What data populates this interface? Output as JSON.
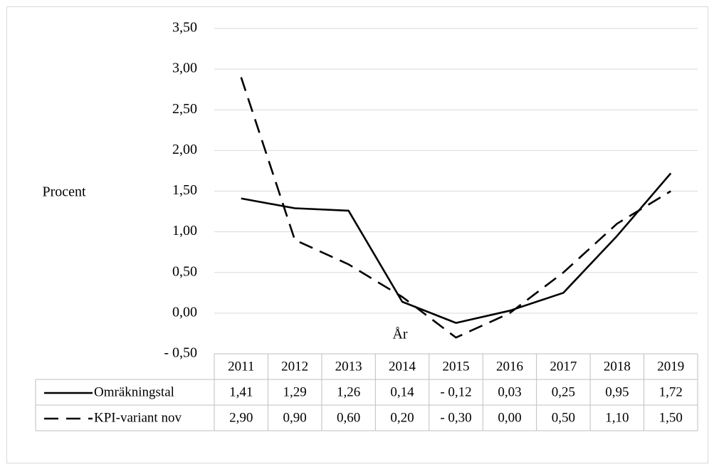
{
  "chart_data": {
    "type": "line",
    "y_label": "Procent",
    "x_label": "År",
    "categories": [
      "2011",
      "2012",
      "2013",
      "2014",
      "2015",
      "2016",
      "2017",
      "2018",
      "2019"
    ],
    "series": [
      {
        "name": "Omräkningstal",
        "color": "#000000",
        "dash": "solid",
        "values": [
          1.41,
          1.29,
          1.26,
          0.14,
          -0.12,
          0.03,
          0.25,
          0.95,
          1.72
        ],
        "value_labels": [
          "1,41",
          "1,29",
          "1,26",
          "0,14",
          "- 0,12",
          "0,03",
          "0,25",
          "0,95",
          "1,72"
        ]
      },
      {
        "name": "KPI-variant nov",
        "color": "#000000",
        "dash": "dashed",
        "values": [
          2.9,
          0.9,
          0.6,
          0.2,
          -0.3,
          0.0,
          0.5,
          1.1,
          1.5
        ],
        "value_labels": [
          "2,90",
          "0,90",
          "0,60",
          "0,20",
          "- 0,30",
          "0,00",
          "0,50",
          "1,10",
          "1,50"
        ]
      }
    ],
    "ylim": [
      -0.5,
      3.5
    ],
    "yticks": [
      {
        "value": -0.5,
        "label": "- 0,50"
      },
      {
        "value": 0,
        "label": "0,00"
      },
      {
        "value": 0.5,
        "label": "0,50"
      },
      {
        "value": 1,
        "label": "1,00"
      },
      {
        "value": 1.5,
        "label": "1,50"
      },
      {
        "value": 2,
        "label": "2,00"
      },
      {
        "value": 2.5,
        "label": "2,50"
      },
      {
        "value": 3,
        "label": "3,00"
      },
      {
        "value": 3.5,
        "label": "3,50"
      }
    ],
    "negative_label_color": "#ff0000",
    "grid": true,
    "data_table": true
  }
}
